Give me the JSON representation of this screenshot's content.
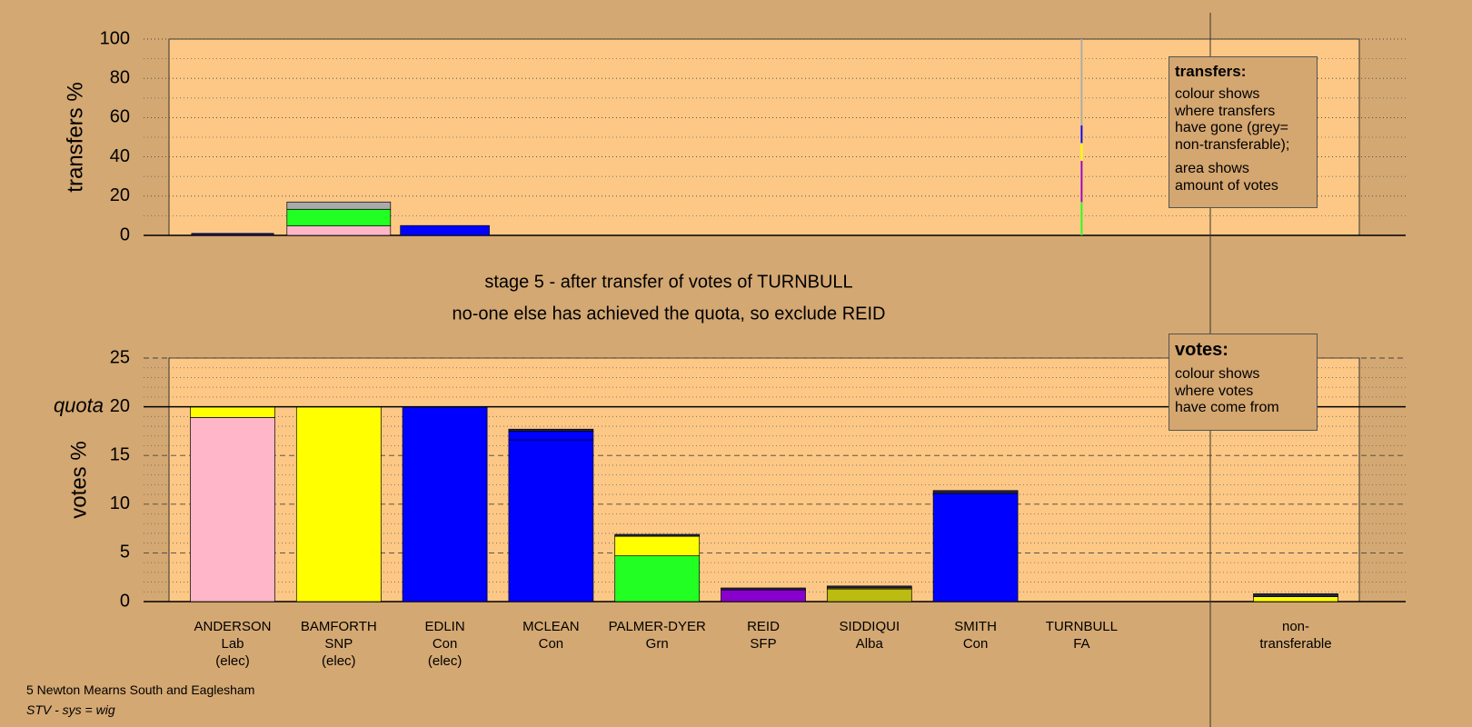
{
  "chart_data": [
    {
      "type": "bar",
      "stacked": true,
      "ylabel": "transfers %",
      "ylim": [
        0,
        100
      ],
      "yticks": [
        0,
        20,
        40,
        60,
        80,
        100
      ],
      "minor_yticks": [
        10,
        30,
        50,
        70,
        90
      ],
      "transfer_amount": [
        0.95,
        1.2,
        1.03,
        0,
        0,
        0,
        0,
        0,
        0.02,
        0
      ],
      "series": [
        {
          "color": "#ffb6c8",
          "values": [
            0.4,
            4.8,
            0,
            0,
            0,
            0,
            0,
            0,
            0,
            0
          ]
        },
        {
          "color": "#22ff22",
          "values": [
            0,
            8.5,
            0,
            0,
            0,
            0,
            0,
            0,
            17,
            0
          ]
        },
        {
          "color": "#9900cc",
          "values": [
            0,
            0,
            0,
            0,
            0,
            0,
            0,
            0,
            21,
            0
          ]
        },
        {
          "color": "#ffff00",
          "values": [
            0,
            0,
            0,
            0,
            0,
            0,
            0,
            0,
            9,
            0
          ]
        },
        {
          "color": "#0000ff",
          "values": [
            0.6,
            0,
            5,
            0,
            0,
            0,
            0,
            0,
            9,
            0
          ]
        },
        {
          "color": "#aaaaaa",
          "values": [
            0,
            3.7,
            0,
            0,
            0,
            0,
            0,
            0,
            44,
            0
          ]
        }
      ]
    },
    {
      "type": "bar",
      "stacked": true,
      "ylabel": "votes %",
      "ylim": [
        0,
        25
      ],
      "yticks": [
        0,
        5,
        10,
        15,
        20,
        25
      ],
      "minor_yticks": [
        1,
        2,
        3,
        4,
        6,
        7,
        8,
        9,
        11,
        12,
        13,
        14,
        16,
        17,
        18,
        19,
        21,
        22,
        23,
        24
      ],
      "quota": {
        "value": 20,
        "label": "quota"
      },
      "categories": [
        "ANDERSON",
        "BAMFORTH",
        "EDLIN",
        "MCLEAN",
        "PALMER-DYER",
        "REID",
        "SIDDIQUI",
        "SMITH",
        "TURNBULL",
        "non-transferable"
      ],
      "parties": [
        "Lab",
        "SNP",
        "Con",
        "Con",
        "Grn",
        "SFP",
        "Alba",
        "Con",
        "FA",
        null
      ],
      "status": [
        "(elec)",
        "(elec)",
        "(elec)",
        null,
        null,
        null,
        null,
        null,
        null,
        null
      ],
      "series": [
        {
          "color": "#ffb6c8",
          "values": [
            18.9,
            0,
            0,
            0,
            0,
            0,
            0,
            0,
            0,
            0
          ]
        },
        {
          "color": "#0000ff",
          "values": [
            0,
            0,
            20,
            16.6,
            0,
            0,
            0,
            11.1,
            0,
            0
          ]
        },
        {
          "color": "#22ff22",
          "values": [
            0,
            0,
            0,
            0,
            4.7,
            0,
            0,
            0,
            0,
            0
          ]
        },
        {
          "color": "#8800cc",
          "values": [
            0,
            0,
            0,
            0,
            0,
            1.2,
            0,
            0,
            0,
            0
          ]
        },
        {
          "color": "#bbbb11",
          "values": [
            0,
            0,
            0,
            0,
            0,
            0,
            1.3,
            0,
            0,
            0
          ]
        },
        {
          "color": "#ffff00",
          "values": [
            1.1,
            20,
            0,
            0,
            2.0,
            0,
            0.1,
            0,
            0,
            0.5
          ]
        },
        {
          "color": "#0000ff",
          "values": [
            0,
            0,
            0,
            0.9,
            0,
            0,
            0,
            0,
            0,
            0
          ]
        },
        {
          "color": "#222244",
          "values": [
            0,
            0,
            0,
            0.2,
            0.2,
            0.2,
            0.2,
            0.3,
            0,
            0.3
          ]
        }
      ]
    }
  ],
  "stage": {
    "title": "stage 5 - after transfer of votes of TURNBULL",
    "subtitle": "no-one else has achieved the quota, so exclude REID"
  },
  "legends": {
    "transfers": {
      "title": "transfers:",
      "paragraphs": [
        [
          "colour shows",
          "where transfers",
          "have gone (grey=",
          "non-transferable);"
        ],
        [
          "area shows",
          "amount of votes"
        ]
      ]
    },
    "votes": {
      "title": "votes:",
      "paragraphs": [
        [
          "colour shows",
          "where votes",
          "have come from"
        ]
      ]
    }
  },
  "footer": {
    "ward": "5 Newton Mearns South and Eaglesham",
    "system": "STV - sys = wig"
  }
}
